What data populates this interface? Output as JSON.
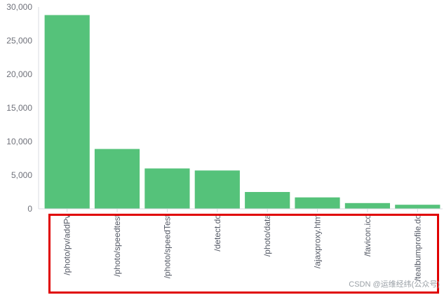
{
  "chart_data": {
    "type": "bar",
    "categories": [
      "/photo/pv/addPv",
      "/photo/speedtest",
      "/photo/speedTest",
      "/detect.do",
      "/photo/data",
      "/ajaxproxy.htm",
      "/favicon.ico",
      "/tealbumprofile.do"
    ],
    "values": [
      28800,
      8900,
      6000,
      5700,
      2500,
      1700,
      850,
      600
    ],
    "title": "",
    "xlabel": "",
    "ylabel": "",
    "ylim": [
      0,
      30000
    ],
    "yticks": [
      "0",
      "5,000",
      "10,000",
      "15,000",
      "20,000",
      "25,000",
      "30,000"
    ],
    "bar_color": "#55c27a",
    "grid": false,
    "legend": "none"
  },
  "watermark": "CSDN @运维经纬(公众号)",
  "highlight_color": "#e00000"
}
